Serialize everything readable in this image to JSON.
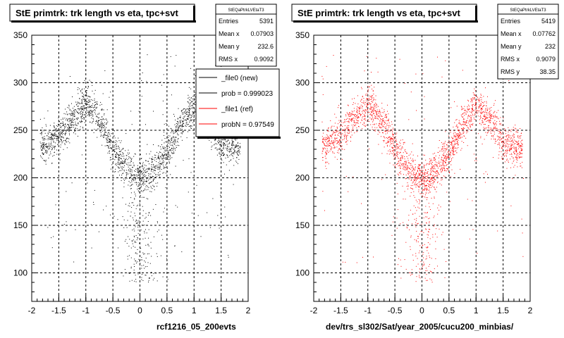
{
  "chart_data": [
    {
      "type": "scatter",
      "title": "StE primtrk: trk length vs eta, tpc+svt",
      "xlabel": "rcf1216_05_200evts",
      "ylabel": "",
      "xlim": [
        -2,
        2
      ],
      "ylim": [
        70,
        350
      ],
      "xticks": [
        "-2",
        "-1.5",
        "-1",
        "-0.5",
        "0",
        "0.5",
        "1",
        "1.5",
        "2"
      ],
      "yticks": [
        "100",
        "150",
        "200",
        "250",
        "300",
        "350"
      ],
      "grid": true,
      "marker_color": "#000000",
      "stats": {
        "header": "StEQaPtrkLVEtaT3",
        "rows": [
          {
            "label": "Entries",
            "value": "5391"
          },
          {
            "label": "Mean x",
            "value": "0.07903"
          },
          {
            "label": "Mean y",
            "value": "232.6"
          },
          {
            "label": "RMS x",
            "value": "0.9092"
          }
        ]
      },
      "legend": {
        "placement": "top-right",
        "entries": [
          {
            "label": "_file0 (new)",
            "color": "#000000"
          },
          {
            "label": "prob = 0.999023",
            "color": "#000000"
          },
          {
            "label": "_file1 (ref)",
            "color": "#ff0000"
          },
          {
            "label": "probN = 0.97549",
            "color": "#ff0000"
          }
        ]
      },
      "band": {
        "eta": [
          -1.75,
          -1.5,
          -1.25,
          -1.0,
          -0.75,
          -0.5,
          -0.25,
          0.0,
          0.25,
          0.5,
          0.75,
          1.0,
          1.25,
          1.5,
          1.75
        ],
        "length": [
          235,
          245,
          262,
          280,
          262,
          230,
          210,
          200,
          208,
          228,
          255,
          278,
          262,
          238,
          232
        ]
      },
      "tail": {
        "eta_center": 0.0,
        "eta_width": 0.35,
        "length_range": [
          90,
          200
        ]
      },
      "n_points": 2600
    },
    {
      "type": "scatter",
      "title": "StE primtrk: trk length vs eta, tpc+svt",
      "xlabel": "dev/trs_sl302/Sat/year_2005/cucu200_minbias/",
      "ylabel": "",
      "xlim": [
        -2,
        2
      ],
      "ylim": [
        70,
        350
      ],
      "xticks": [
        "-2",
        "-1.5",
        "-1",
        "-0.5",
        "0",
        "0.5",
        "1",
        "1.5",
        "2"
      ],
      "yticks": [
        "100",
        "150",
        "200",
        "250",
        "300",
        "350"
      ],
      "grid": true,
      "marker_color": "#ff0000",
      "stats": {
        "header": "StEQaPtrkLVEtaT3",
        "rows": [
          {
            "label": "Entries",
            "value": "5419"
          },
          {
            "label": "Mean x",
            "value": "0.07762"
          },
          {
            "label": "Mean y",
            "value": "232"
          },
          {
            "label": "RMS x",
            "value": "0.9079"
          },
          {
            "label": "RMS y",
            "value": "38.35"
          }
        ]
      },
      "band": {
        "eta": [
          -1.75,
          -1.5,
          -1.25,
          -1.0,
          -0.75,
          -0.5,
          -0.25,
          0.0,
          0.25,
          0.5,
          0.75,
          1.0,
          1.25,
          1.5,
          1.75
        ],
        "length": [
          235,
          245,
          262,
          280,
          262,
          230,
          210,
          200,
          208,
          228,
          255,
          278,
          262,
          238,
          232
        ]
      },
      "tail": {
        "eta_center": 0.0,
        "eta_width": 0.35,
        "length_range": [
          90,
          200
        ]
      },
      "n_points": 2600
    }
  ]
}
